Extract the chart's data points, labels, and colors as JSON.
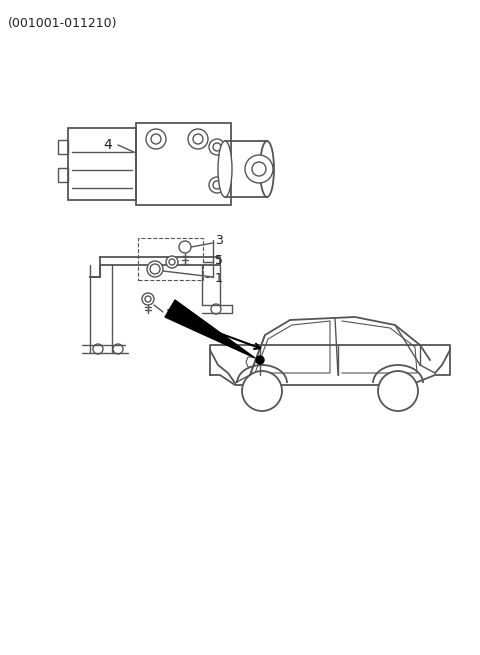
{
  "title_text": "(001001-011210)",
  "bg_color": "#ffffff",
  "line_color": "#555555",
  "label_color": "#222222",
  "font_size_title": 9,
  "font_size_label": 9,
  "fig_width": 4.8,
  "fig_height": 6.55,
  "dpi": 100
}
